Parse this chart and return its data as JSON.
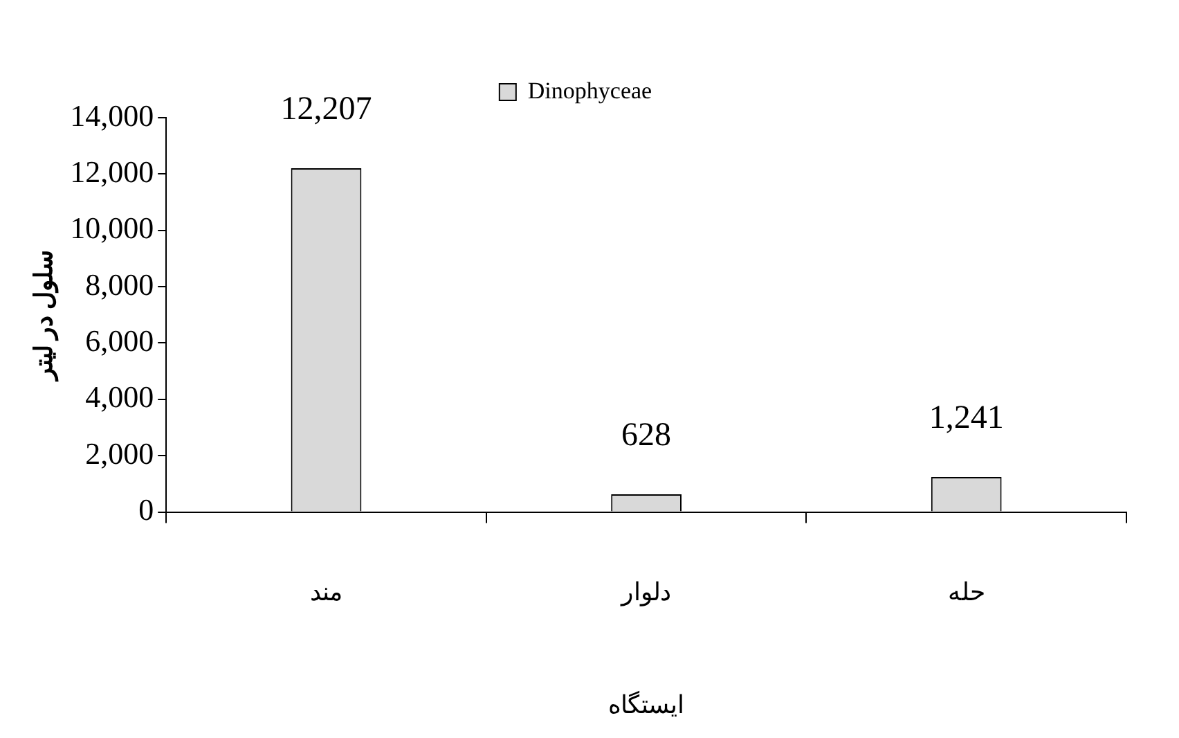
{
  "chart_data": {
    "type": "bar",
    "xlabel": "ایستگاه",
    "ylabel": "سلول در لیتر",
    "categories": [
      "مند",
      "دلوار",
      "حله"
    ],
    "series": [
      {
        "name": "Dinophyceae",
        "color": "#d9d9d9",
        "values": [
          12207,
          628,
          1241
        ],
        "value_labels": [
          "12,207",
          "628",
          "1,241"
        ]
      }
    ],
    "ylim": [
      0,
      14000
    ],
    "yticks": [
      0,
      {
        "value": 2000,
        "label": "2,000"
      },
      {
        "value": 4000,
        "label": "4,000"
      },
      {
        "value": 6000,
        "label": "6,000"
      },
      {
        "value": 8000,
        "label": "8,000"
      },
      {
        "value": 10000,
        "label": "10,000"
      },
      {
        "value": 12000,
        "label": "12,000"
      },
      {
        "value": 14000,
        "label": "14,000"
      }
    ],
    "grid": false,
    "legend": "top"
  }
}
